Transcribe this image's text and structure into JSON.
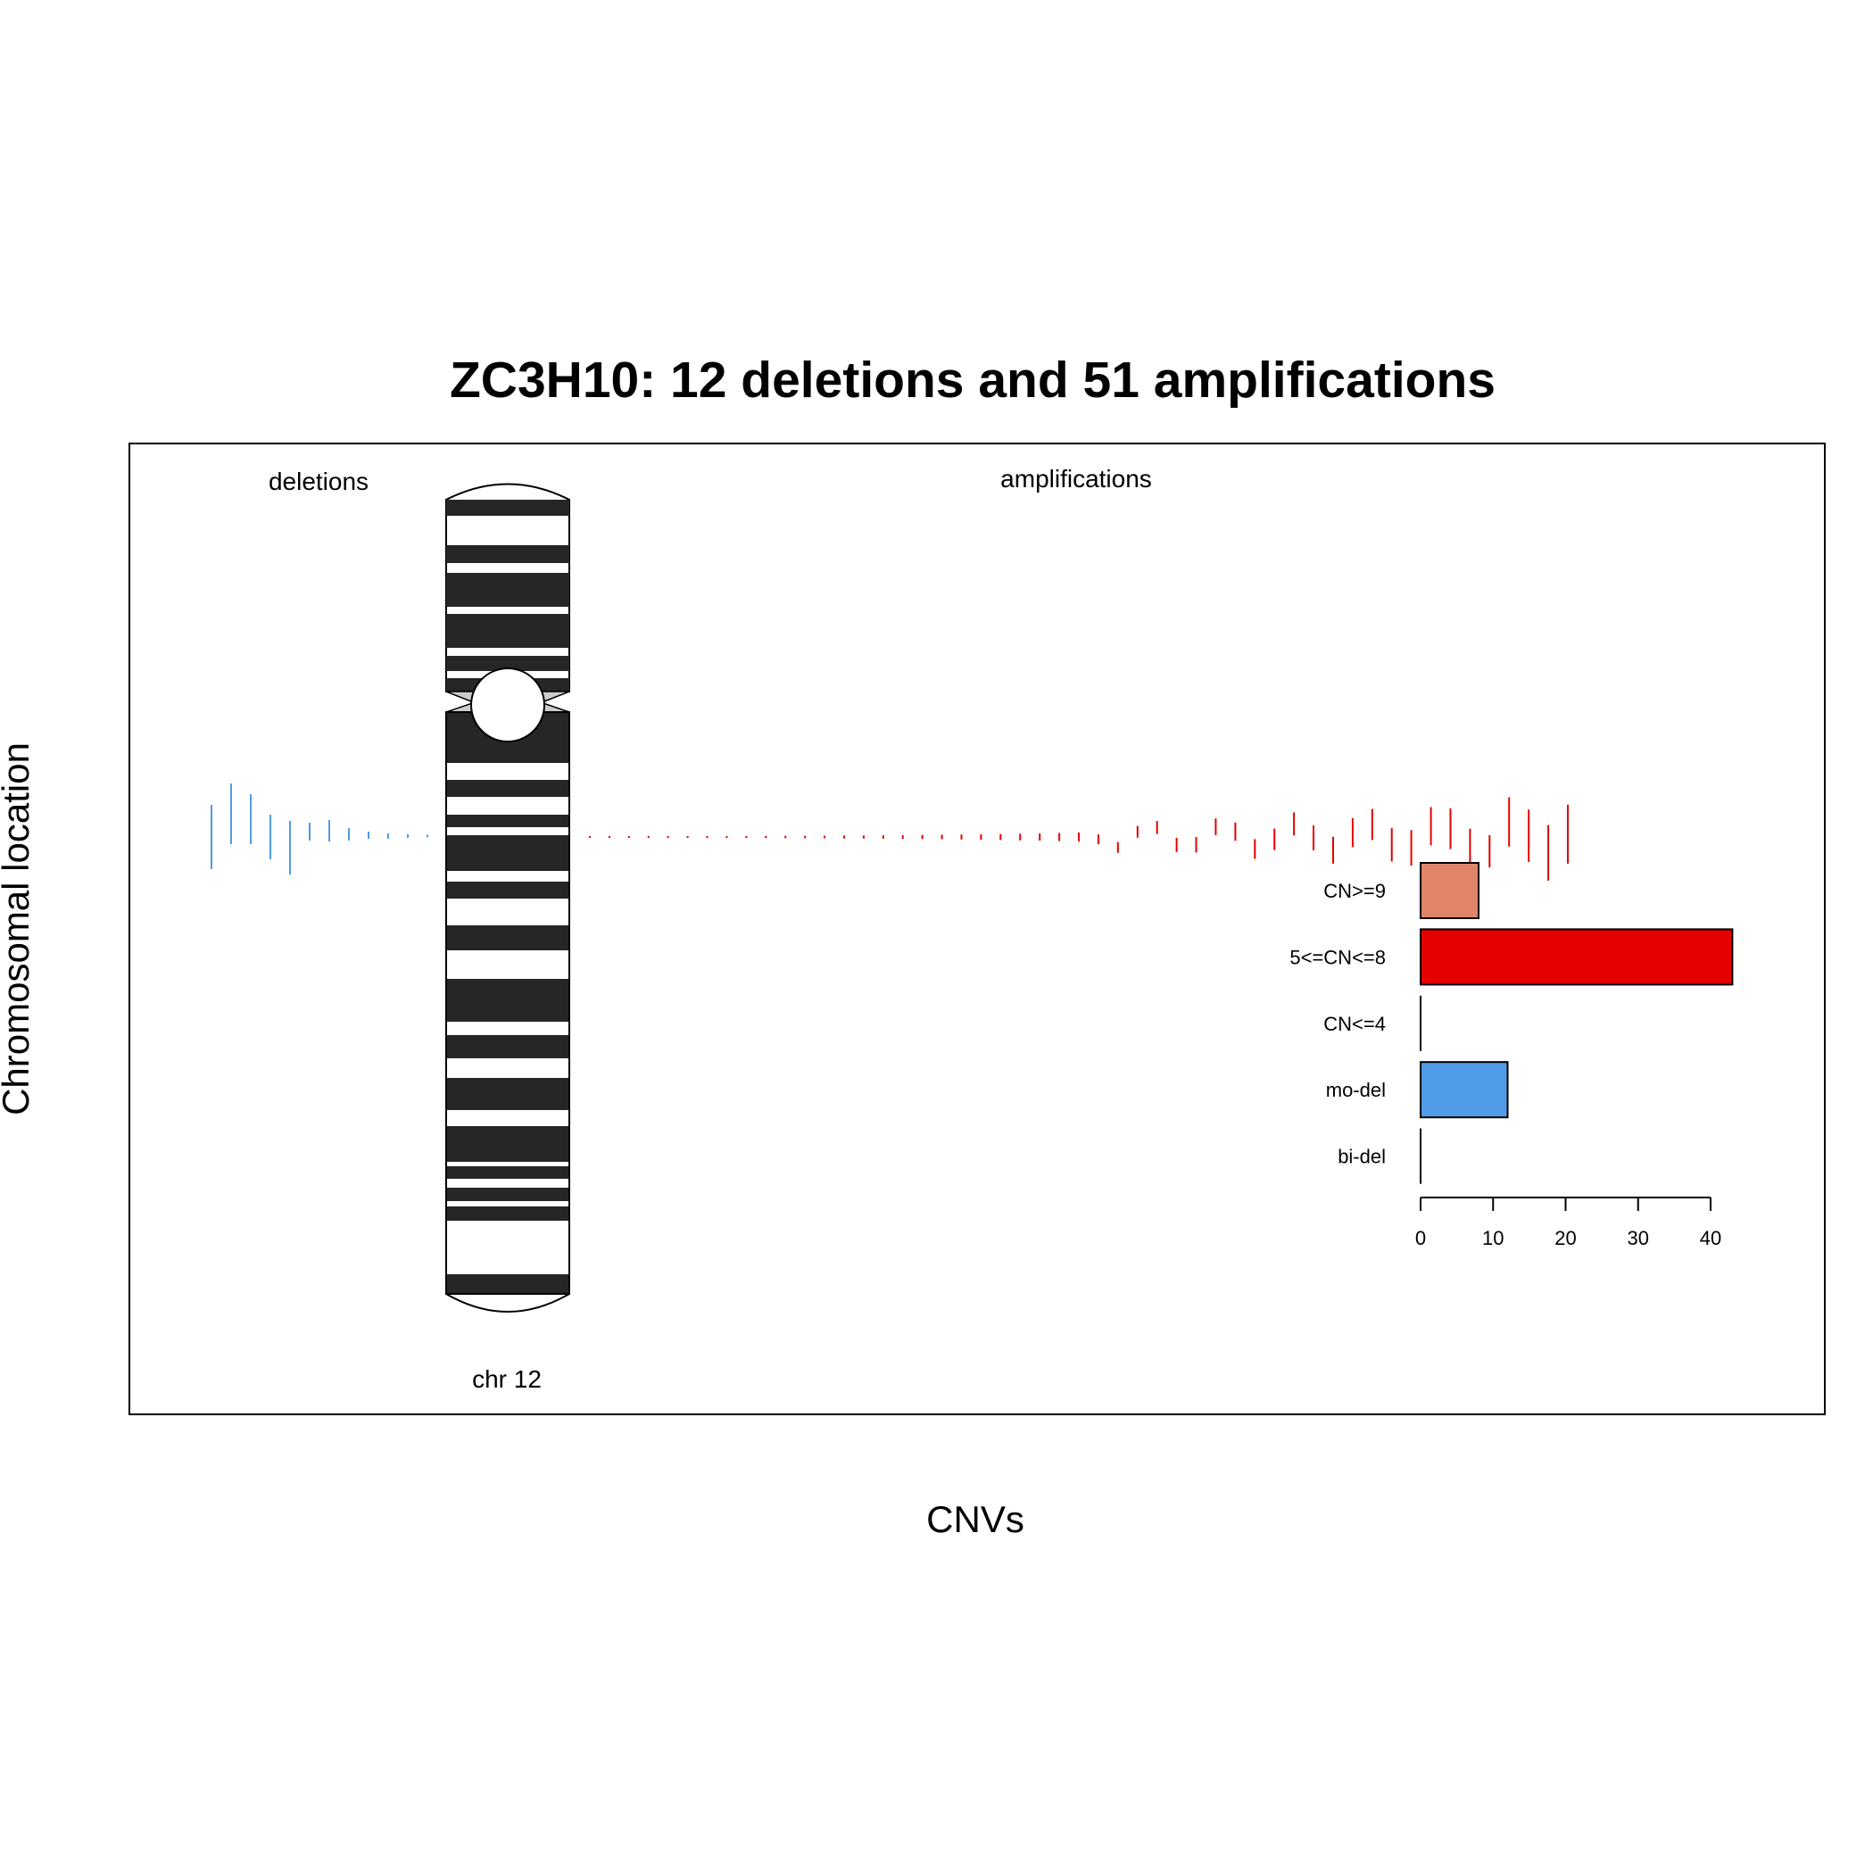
{
  "chart_data": {
    "type": "bar",
    "title": "ZC3H10: 12 deletions and 51 amplifications",
    "xlabel": "CNVs",
    "ylabel": "Chromosomal location",
    "panel_labels": {
      "left": "deletions",
      "right": "amplifications"
    },
    "chromosome_label": "chr 12",
    "categories": [
      "CN>=9",
      "5<=CN<=8",
      "CN<=4",
      "mo-del",
      "bi-del"
    ],
    "values": [
      8,
      43,
      0,
      12,
      0
    ],
    "bar_colors": [
      "#E0856A",
      "#E50000",
      "#000000",
      "#4F9BE8",
      "#000000"
    ],
    "xticks": [
      0,
      10,
      20,
      30,
      40
    ],
    "xlim": [
      0,
      43
    ],
    "colors": {
      "deletion": "#4F9BE8",
      "amplification": "#E50000"
    },
    "deletion_count": 12,
    "amplification_count": 51
  }
}
